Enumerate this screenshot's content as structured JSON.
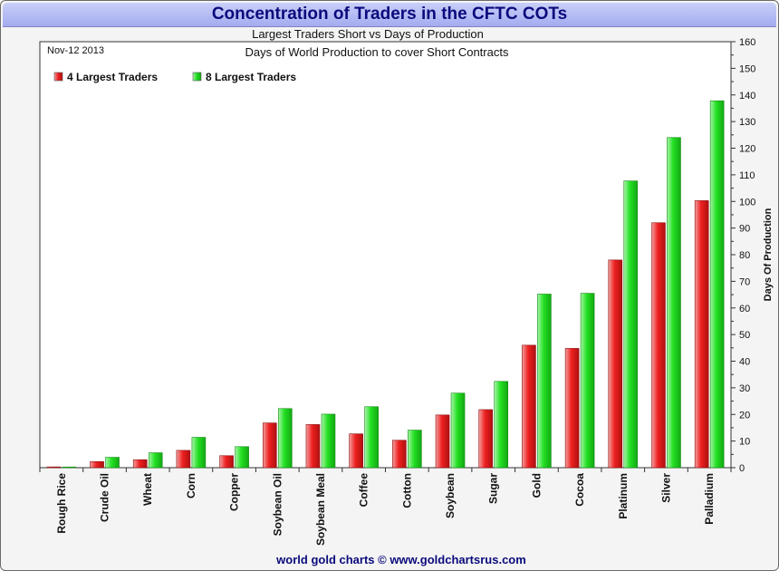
{
  "title": "Concentration of Traders in the CFTC COTs",
  "subtitle": "Largest Traders Short vs Days of Production",
  "plot_title": "Days of World Production to cover Short Contracts",
  "date": "Nov-12 2013",
  "footer": "world gold charts © www.goldchartsrus.com",
  "colors": {
    "red": "#ee2020",
    "green": "#22e022",
    "title": "#0a0a7c"
  },
  "chart_data": {
    "type": "bar",
    "title": "Concentration of Traders in the CFTC COTs",
    "ylabel": "Days Of Production",
    "xlabel": "",
    "ylim": [
      0,
      160
    ],
    "yticks": [
      0,
      10,
      20,
      30,
      40,
      50,
      60,
      70,
      80,
      90,
      100,
      110,
      120,
      130,
      140,
      150,
      160
    ],
    "grid": false,
    "legend": "top-left",
    "categories": [
      "Rough Rice",
      "Crude Oil",
      "Wheat",
      "Corn",
      "Copper",
      "Soybean Oil",
      "Soybean Meal",
      "Coffee",
      "Cotton",
      "Soybean",
      "Sugar",
      "Gold",
      "Cocoa",
      "Platinum",
      "Silver",
      "Palladium"
    ],
    "series": [
      {
        "name": "4 Largest Traders",
        "color": "#ee2020",
        "values": [
          0.3,
          2.3,
          3.0,
          6.5,
          4.5,
          16.8,
          16.2,
          12.7,
          10.3,
          19.8,
          21.8,
          46.0,
          44.8,
          78.0,
          92.0,
          100.3
        ]
      },
      {
        "name": "8 Largest Traders",
        "color": "#22e022",
        "values": [
          0.2,
          3.9,
          5.6,
          11.4,
          7.9,
          22.2,
          20.1,
          22.9,
          14.1,
          28.0,
          32.4,
          65.2,
          65.5,
          107.7,
          124.0,
          137.8
        ]
      }
    ]
  }
}
